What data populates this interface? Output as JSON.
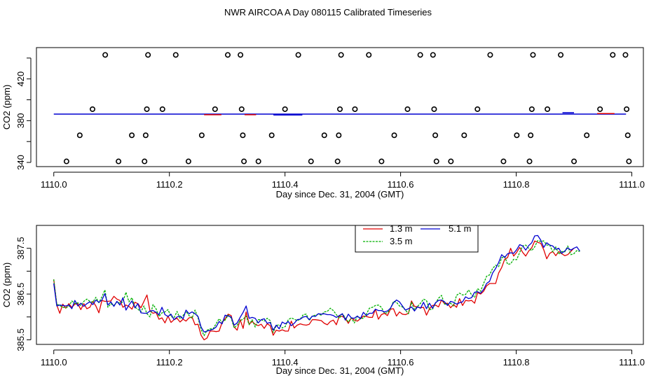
{
  "title": "NWR AIRCOA A  Day 080115  Calibrated Timeseries",
  "colors": {
    "red": "#e00000",
    "green": "#00b000",
    "blue": "#0000d0",
    "ink": "#000000"
  },
  "chart_data": [
    {
      "type": "scatter",
      "xlabel": "Day since Dec. 31, 2004 (GMT)",
      "ylabel": "CO2 (ppm)",
      "xlim": [
        1109.97,
        1111.02
      ],
      "ylim": [
        336,
        450
      ],
      "x_ticks": [
        1110.0,
        1110.2,
        1110.4,
        1110.6,
        1110.8,
        1111.0
      ],
      "x_tick_labels": [
        "1110.0",
        "1110.2",
        "1110.4",
        "1110.6",
        "1110.8",
        "1111.0"
      ],
      "y_ticks": [
        340,
        380,
        420
      ],
      "y_tick_labels": [
        "340",
        "380",
        "420"
      ],
      "y_minor_ticks": [
        360,
        400,
        440
      ],
      "markers": [
        {
          "x": 1110.022,
          "y": 341
        },
        {
          "x": 1110.045,
          "y": 366
        },
        {
          "x": 1110.067,
          "y": 391
        },
        {
          "x": 1110.089,
          "y": 443
        },
        {
          "x": 1110.112,
          "y": 341
        },
        {
          "x": 1110.135,
          "y": 366
        },
        {
          "x": 1110.157,
          "y": 341
        },
        {
          "x": 1110.159,
          "y": 366
        },
        {
          "x": 1110.161,
          "y": 391
        },
        {
          "x": 1110.163,
          "y": 443
        },
        {
          "x": 1110.188,
          "y": 391
        },
        {
          "x": 1110.211,
          "y": 443
        },
        {
          "x": 1110.233,
          "y": 341
        },
        {
          "x": 1110.256,
          "y": 366
        },
        {
          "x": 1110.279,
          "y": 391
        },
        {
          "x": 1110.301,
          "y": 443
        },
        {
          "x": 1110.323,
          "y": 443
        },
        {
          "x": 1110.325,
          "y": 391
        },
        {
          "x": 1110.327,
          "y": 366
        },
        {
          "x": 1110.329,
          "y": 341
        },
        {
          "x": 1110.354,
          "y": 341
        },
        {
          "x": 1110.377,
          "y": 366
        },
        {
          "x": 1110.4,
          "y": 391
        },
        {
          "x": 1110.423,
          "y": 443
        },
        {
          "x": 1110.445,
          "y": 341
        },
        {
          "x": 1110.468,
          "y": 366
        },
        {
          "x": 1110.491,
          "y": 341
        },
        {
          "x": 1110.493,
          "y": 366
        },
        {
          "x": 1110.495,
          "y": 391
        },
        {
          "x": 1110.497,
          "y": 443
        },
        {
          "x": 1110.521,
          "y": 391
        },
        {
          "x": 1110.545,
          "y": 443
        },
        {
          "x": 1110.567,
          "y": 341
        },
        {
          "x": 1110.589,
          "y": 366
        },
        {
          "x": 1110.612,
          "y": 391
        },
        {
          "x": 1110.634,
          "y": 443
        },
        {
          "x": 1110.656,
          "y": 443
        },
        {
          "x": 1110.658,
          "y": 391
        },
        {
          "x": 1110.66,
          "y": 366
        },
        {
          "x": 1110.662,
          "y": 341
        },
        {
          "x": 1110.687,
          "y": 341
        },
        {
          "x": 1110.71,
          "y": 366
        },
        {
          "x": 1110.733,
          "y": 391
        },
        {
          "x": 1110.755,
          "y": 443
        },
        {
          "x": 1110.778,
          "y": 341
        },
        {
          "x": 1110.801,
          "y": 366
        },
        {
          "x": 1110.823,
          "y": 341
        },
        {
          "x": 1110.825,
          "y": 366
        },
        {
          "x": 1110.827,
          "y": 391
        },
        {
          "x": 1110.829,
          "y": 443
        },
        {
          "x": 1110.854,
          "y": 391
        },
        {
          "x": 1110.877,
          "y": 443
        },
        {
          "x": 1110.9,
          "y": 341
        },
        {
          "x": 1110.922,
          "y": 366
        },
        {
          "x": 1110.945,
          "y": 391
        },
        {
          "x": 1110.967,
          "y": 443
        },
        {
          "x": 1110.989,
          "y": 443
        },
        {
          "x": 1110.991,
          "y": 391
        },
        {
          "x": 1110.993,
          "y": 366
        },
        {
          "x": 1110.995,
          "y": 341
        }
      ],
      "series": [
        {
          "color": "#0000d0",
          "x": [
            1110.0,
            1110.99
          ],
          "y": [
            386.3,
            386.3
          ]
        },
        {
          "color": "#e00000",
          "x": [
            1110.26,
            1110.29
          ],
          "y": [
            385.7,
            385.7
          ]
        },
        {
          "color": "#e00000",
          "x": [
            1110.33,
            1110.35
          ],
          "y": [
            385.7,
            385.7
          ]
        },
        {
          "color": "#0000d0",
          "x": [
            1110.38,
            1110.43
          ],
          "y": [
            385.5,
            385.5
          ]
        },
        {
          "color": "#e00000",
          "x": [
            1110.94,
            1110.97
          ],
          "y": [
            386.8,
            386.8
          ]
        },
        {
          "color": "#0000d0",
          "x": [
            1110.88,
            1110.9
          ],
          "y": [
            387.6,
            387.6
          ]
        }
      ]
    },
    {
      "type": "line",
      "xlabel": "Day since Dec. 31, 2004 (GMT)",
      "ylabel": "CO2 (ppm)",
      "xlim": [
        1109.97,
        1111.02
      ],
      "ylim": [
        385.4,
        388.0
      ],
      "x_ticks": [
        1110.0,
        1110.2,
        1110.4,
        1110.6,
        1110.8,
        1111.0
      ],
      "x_tick_labels": [
        "1110.0",
        "1110.2",
        "1110.4",
        "1110.6",
        "1110.8",
        "1111.0"
      ],
      "y_ticks": [
        385.5,
        386.5,
        387.5
      ],
      "y_tick_labels": [
        "385.5",
        "386.5",
        "387.5"
      ],
      "y_minor_ticks": [
        386.0,
        387.0
      ],
      "x_start": 1110.0,
      "x_step": 0.0052,
      "legend_position": "top-center",
      "series": [
        {
          "name": "1.3 m",
          "color": "#e00000",
          "key": "red",
          "y": [
            386.82,
            386.26,
            386.08,
            386.28,
            386.19,
            386.29,
            386.21,
            386.28,
            386.29,
            386.16,
            386.29,
            386.18,
            386.21,
            386.34,
            386.24,
            386.09,
            386.36,
            386.34,
            386.34,
            386.35,
            386.45,
            386.39,
            386.36,
            386.21,
            386.26,
            386.23,
            386.17,
            386.32,
            386.29,
            386.2,
            386.34,
            386.48,
            386.13,
            386.08,
            386.1,
            385.95,
            385.98,
            385.87,
            386.02,
            385.88,
            385.94,
            385.97,
            385.89,
            385.95,
            385.91,
            385.98,
            386.0,
            385.83,
            385.84,
            385.6,
            385.5,
            385.54,
            385.69,
            385.69,
            385.68,
            385.69,
            385.88,
            385.96,
            386.06,
            386.03,
            385.78,
            385.71,
            385.94,
            385.75,
            386.11,
            385.84,
            385.9,
            385.84,
            385.81,
            385.84,
            385.75,
            385.85,
            385.81,
            385.6,
            385.71,
            385.69,
            385.72,
            385.69,
            385.69,
            385.91,
            385.76,
            385.82,
            385.85,
            385.83,
            385.82,
            385.84,
            385.94,
            385.94,
            385.93,
            385.92,
            385.86,
            385.83,
            385.9,
            385.93,
            385.83,
            386.02,
            386.01,
            385.97,
            385.86,
            385.98,
            385.93,
            385.91,
            385.96,
            386.02,
            386.01,
            385.99,
            385.99,
            386.17,
            385.95,
            386.05,
            386.08,
            386.03,
            386.17,
            386.18,
            386.02,
            386.11,
            386.06,
            386.05,
            386.08,
            386.35,
            386.23,
            386.22,
            386.2,
            386.21,
            386.04,
            386.18,
            386.25,
            386.26,
            386.22,
            386.37,
            386.29,
            386.3,
            386.2,
            386.27,
            386.21,
            386.4,
            386.25,
            386.36,
            386.35,
            386.36,
            386.3,
            386.53,
            386.5,
            386.56,
            386.68,
            386.73,
            386.73,
            386.73,
            386.96,
            387.08,
            387.26,
            387.3,
            387.5,
            387.33,
            387.41,
            387.52,
            387.41,
            387.33,
            387.44,
            387.51,
            387.66,
            387.63,
            387.61,
            387.47,
            387.27,
            387.39,
            387.43,
            387.34,
            387.43,
            387.38,
            387.34,
            387.36,
            387.43,
            387.5
          ]
        },
        {
          "name": "3.5 m",
          "color": "#00b000",
          "key": "green",
          "y": [
            386.82,
            386.28,
            386.25,
            386.21,
            386.2,
            386.23,
            386.35,
            386.29,
            386.31,
            386.25,
            386.34,
            386.39,
            386.34,
            386.32,
            386.43,
            386.31,
            386.44,
            386.59,
            386.21,
            386.29,
            386.25,
            386.33,
            386.3,
            386.33,
            386.54,
            386.33,
            386.42,
            386.21,
            386.17,
            386.11,
            386.24,
            386.07,
            386.0,
            386.27,
            386.18,
            386.01,
            386.09,
            386.11,
            386.16,
            386.01,
            385.98,
            386.12,
            385.96,
            386.03,
            386.12,
            386.03,
            385.97,
            386.15,
            385.98,
            385.73,
            385.59,
            385.71,
            385.74,
            385.74,
            385.85,
            385.96,
            385.89,
            385.93,
            386.04,
            385.98,
            385.76,
            385.82,
            385.92,
            385.95,
            386.02,
            385.83,
            385.94,
            385.78,
            385.94,
            385.94,
            385.91,
            385.97,
            385.92,
            385.66,
            385.81,
            385.83,
            385.76,
            385.79,
            385.94,
            385.98,
            385.95,
            385.92,
            385.95,
            386.05,
            386.06,
            385.92,
            386.02,
            386.04,
            386.06,
            386.04,
            386.11,
            386.12,
            386.19,
            386.14,
            386.05,
            385.97,
            386.07,
            385.98,
            385.89,
            385.98,
            385.87,
            386.02,
            385.97,
            385.97,
            386.06,
            386.19,
            386.21,
            386.25,
            386.26,
            386.21,
            386.08,
            386.09,
            386.18,
            386.34,
            386.32,
            386.24,
            386.22,
            386.15,
            386.07,
            386.32,
            386.16,
            386.23,
            386.3,
            386.39,
            386.36,
            386.16,
            386.17,
            386.3,
            386.41,
            386.47,
            386.28,
            386.28,
            386.3,
            386.24,
            386.47,
            386.52,
            386.48,
            386.49,
            386.59,
            386.48,
            386.43,
            386.62,
            386.56,
            386.73,
            386.89,
            386.92,
            387.06,
            387.13,
            387.1,
            387.29,
            387.32,
            387.15,
            387.16,
            387.26,
            387.25,
            387.41,
            387.55,
            387.57,
            387.5,
            387.45,
            387.53,
            387.67,
            387.65,
            387.66,
            387.57,
            387.57,
            387.42,
            387.53,
            387.37,
            387.43,
            387.42,
            387.55,
            387.36,
            387.38,
            387.45,
            387.43
          ]
        },
        {
          "name": "5.1 m",
          "color": "#0000d0",
          "key": "blue",
          "y": [
            386.73,
            386.24,
            386.26,
            386.25,
            386.24,
            386.26,
            386.18,
            386.36,
            386.24,
            386.3,
            386.23,
            386.29,
            386.33,
            386.27,
            386.37,
            386.32,
            386.37,
            386.51,
            386.26,
            386.33,
            386.23,
            386.34,
            386.26,
            386.42,
            386.15,
            386.26,
            386.35,
            386.2,
            386.29,
            386.09,
            386.08,
            386.08,
            386.13,
            386.14,
            386.1,
            386.05,
            386.21,
            386.05,
            386.01,
            386.06,
            385.94,
            386.0,
            386.02,
            385.96,
            386.15,
            386.07,
            386.11,
            386.07,
            386.01,
            385.78,
            385.67,
            385.69,
            385.71,
            385.73,
            385.78,
            385.9,
            385.85,
            386.04,
            386.02,
            386.0,
            385.82,
            385.87,
            385.99,
            386.1,
            386.24,
            385.97,
            385.99,
            385.97,
            385.87,
            385.94,
            385.96,
            385.86,
            385.88,
            385.71,
            385.82,
            385.74,
            385.89,
            385.85,
            385.9,
            385.81,
            385.86,
            385.94,
            385.95,
            386.0,
            386.01,
            385.94,
            386.02,
            386.01,
            386.07,
            386.06,
            386.07,
            386.05,
            386.05,
            386.03,
            385.99,
            386.03,
            386.07,
            385.93,
            386.06,
            385.98,
            385.97,
            386.02,
            385.96,
            386.1,
            386.03,
            386.08,
            386.08,
            386.17,
            386.14,
            386.14,
            386.11,
            386.13,
            386.19,
            386.31,
            386.37,
            386.33,
            386.24,
            386.15,
            386.18,
            386.22,
            386.13,
            386.22,
            386.19,
            386.32,
            386.18,
            386.3,
            386.19,
            386.31,
            386.36,
            386.37,
            386.33,
            386.25,
            386.34,
            386.32,
            386.28,
            386.31,
            386.33,
            386.44,
            386.4,
            386.42,
            386.54,
            386.55,
            386.52,
            386.6,
            386.73,
            386.78,
            386.96,
            387.06,
            387.19,
            387.36,
            387.3,
            387.38,
            387.4,
            387.39,
            387.47,
            387.58,
            387.55,
            387.46,
            387.56,
            387.62,
            387.77,
            387.78,
            387.68,
            387.52,
            387.62,
            387.57,
            387.55,
            387.48,
            387.5,
            387.39,
            387.44,
            387.51,
            387.46,
            387.5,
            387.53,
            387.44
          ]
        }
      ]
    }
  ]
}
